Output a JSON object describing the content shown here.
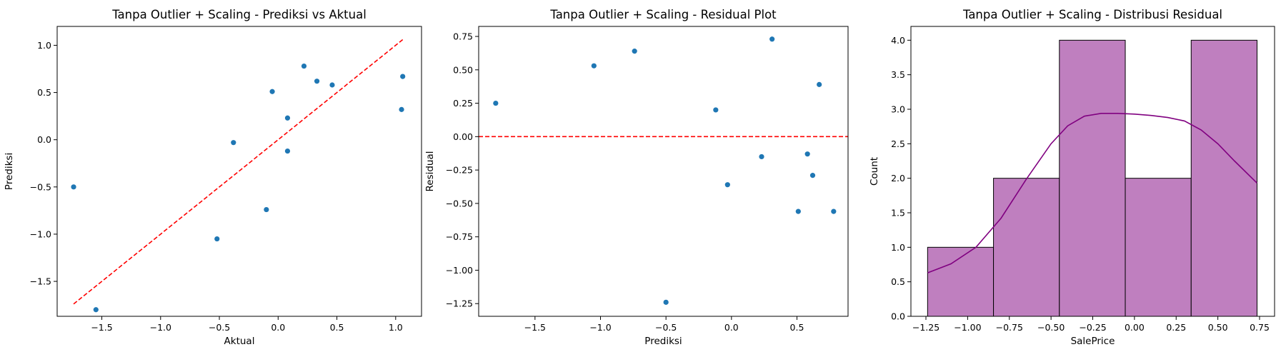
{
  "chart_data": [
    {
      "type": "scatter",
      "title": "Tanpa Outlier + Scaling - Prediksi vs Aktual",
      "xlabel": "Aktual",
      "ylabel": "Prediksi",
      "xlim": [
        -1.88,
        1.22
      ],
      "ylim": [
        -1.87,
        1.2
      ],
      "xticks": [
        -1.5,
        -1.0,
        -0.5,
        0.0,
        0.5,
        1.0
      ],
      "xtick_labels": [
        "−1.5",
        "−1.0",
        "−0.5",
        "0.0",
        "0.5",
        "1.0"
      ],
      "yticks": [
        -1.5,
        -1.0,
        -0.5,
        0.0,
        0.5,
        1.0
      ],
      "ytick_labels": [
        "−1.5",
        "−1.0",
        "−0.5",
        "0.0",
        "0.5",
        "1.0"
      ],
      "points": [
        {
          "x": -1.74,
          "y": -0.5
        },
        {
          "x": -1.55,
          "y": -1.8
        },
        {
          "x": -0.52,
          "y": -1.05
        },
        {
          "x": -0.38,
          "y": -0.03
        },
        {
          "x": -0.1,
          "y": -0.74
        },
        {
          "x": -0.05,
          "y": 0.51
        },
        {
          "x": 0.08,
          "y": 0.23
        },
        {
          "x": 0.08,
          "y": -0.12
        },
        {
          "x": 0.22,
          "y": 0.78
        },
        {
          "x": 0.33,
          "y": 0.62
        },
        {
          "x": 0.46,
          "y": 0.58
        },
        {
          "x": 1.05,
          "y": 0.32
        },
        {
          "x": 1.06,
          "y": 0.67
        }
      ],
      "reference_line": {
        "x": [
          -1.74,
          1.06
        ],
        "y": [
          -1.74,
          1.06
        ],
        "color": "#ff0000",
        "style": "dashed"
      },
      "point_color": "#1f77b4"
    },
    {
      "type": "scatter",
      "title": "Tanpa Outlier + Scaling - Residual Plot",
      "xlabel": "Prediksi",
      "ylabel": "Residual",
      "xlim": [
        -1.93,
        0.89
      ],
      "ylim": [
        -1.345,
        0.825
      ],
      "xticks": [
        -1.5,
        -1.0,
        -0.5,
        0.0,
        0.5
      ],
      "xtick_labels": [
        "−1.5",
        "−1.0",
        "−0.5",
        "0.0",
        "0.5"
      ],
      "yticks": [
        -1.25,
        -1.0,
        -0.75,
        -0.5,
        -0.25,
        0.0,
        0.25,
        0.5,
        0.75
      ],
      "ytick_labels": [
        "−1.25",
        "−1.00",
        "−0.75",
        "−0.50",
        "−0.25",
        "0.00",
        "0.25",
        "0.50",
        "0.75"
      ],
      "points": [
        {
          "x": -1.8,
          "y": 0.25
        },
        {
          "x": -1.05,
          "y": 0.53
        },
        {
          "x": -0.74,
          "y": 0.64
        },
        {
          "x": -0.5,
          "y": -1.24
        },
        {
          "x": -0.12,
          "y": 0.2
        },
        {
          "x": -0.03,
          "y": -0.36
        },
        {
          "x": 0.23,
          "y": -0.15
        },
        {
          "x": 0.31,
          "y": 0.73
        },
        {
          "x": 0.51,
          "y": -0.56
        },
        {
          "x": 0.58,
          "y": -0.13
        },
        {
          "x": 0.62,
          "y": -0.29
        },
        {
          "x": 0.67,
          "y": 0.39
        },
        {
          "x": 0.78,
          "y": -0.56
        }
      ],
      "reference_line": {
        "y": 0.0,
        "color": "#ff0000",
        "style": "dashed"
      },
      "point_color": "#1f77b4"
    },
    {
      "type": "bar",
      "subtype": "histogram",
      "title": "Tanpa Outlier + Scaling - Distribusi Residual",
      "xlabel": "SalePrice",
      "ylabel": "Count",
      "xlim": [
        -1.34,
        0.84
      ],
      "ylim": [
        0,
        4.2
      ],
      "xticks": [
        -1.25,
        -1.0,
        -0.75,
        -0.5,
        -0.25,
        0.0,
        0.25,
        0.5,
        0.75
      ],
      "xtick_labels": [
        "−1.25",
        "−1.00",
        "−0.75",
        "−0.50",
        "−0.25",
        "0.00",
        "0.25",
        "0.50",
        "0.75"
      ],
      "yticks": [
        0,
        0.5,
        1.0,
        1.5,
        2.0,
        2.5,
        3.0,
        3.5,
        4.0
      ],
      "ytick_labels": [
        "0.0",
        "0.5",
        "1.0",
        "1.5",
        "2.0",
        "2.5",
        "3.0",
        "3.5",
        "4.0"
      ],
      "bins": [
        {
          "x0": -1.24,
          "x1": -0.845,
          "count": 1
        },
        {
          "x0": -0.845,
          "x1": -0.45,
          "count": 2
        },
        {
          "x0": -0.45,
          "x1": -0.055,
          "count": 4
        },
        {
          "x0": -0.055,
          "x1": 0.34,
          "count": 2
        },
        {
          "x0": 0.34,
          "x1": 0.735,
          "count": 4
        }
      ],
      "kde": {
        "x": [
          -1.24,
          -1.1,
          -0.95,
          -0.8,
          -0.65,
          -0.5,
          -0.4,
          -0.3,
          -0.2,
          -0.1,
          0.0,
          0.1,
          0.2,
          0.3,
          0.4,
          0.5,
          0.6,
          0.735
        ],
        "y": [
          0.63,
          0.76,
          1.0,
          1.42,
          1.98,
          2.5,
          2.76,
          2.9,
          2.94,
          2.94,
          2.93,
          2.91,
          2.88,
          2.83,
          2.7,
          2.5,
          2.25,
          1.93
        ]
      },
      "bar_color": "#bf7fbf",
      "kde_color": "#800080"
    }
  ]
}
